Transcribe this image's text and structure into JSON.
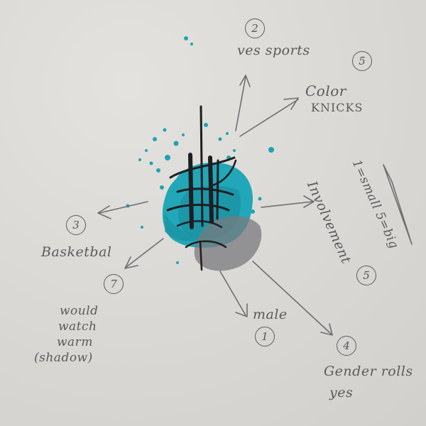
{
  "labels": {
    "ves_sports": {
      "number": "2",
      "text": "ves sports"
    },
    "color_knicks": {
      "number": "5",
      "line1": "Color",
      "line2": "KNICKS"
    },
    "basketbal": {
      "number": "3",
      "text": "Basketbal"
    },
    "involvement": {
      "number": "5",
      "text": "Involvement"
    },
    "scale": {
      "text": "1=small 5=big"
    },
    "watch": {
      "number": "7",
      "line1": "would",
      "line2": "watch",
      "line3": "warm",
      "line4": "(shadow)"
    },
    "male": {
      "number": "1",
      "text": "male"
    },
    "gender_roles": {
      "number": "4",
      "line1": "Gender rolls",
      "line2": "yes"
    }
  },
  "colors": {
    "paper": "#dcdad6",
    "pencil": "#5a5a5e",
    "teal": "#1fa3b5",
    "teal_dark": "#137f8e",
    "ink": "#1e1e22",
    "graphite": "#6e6e72"
  }
}
